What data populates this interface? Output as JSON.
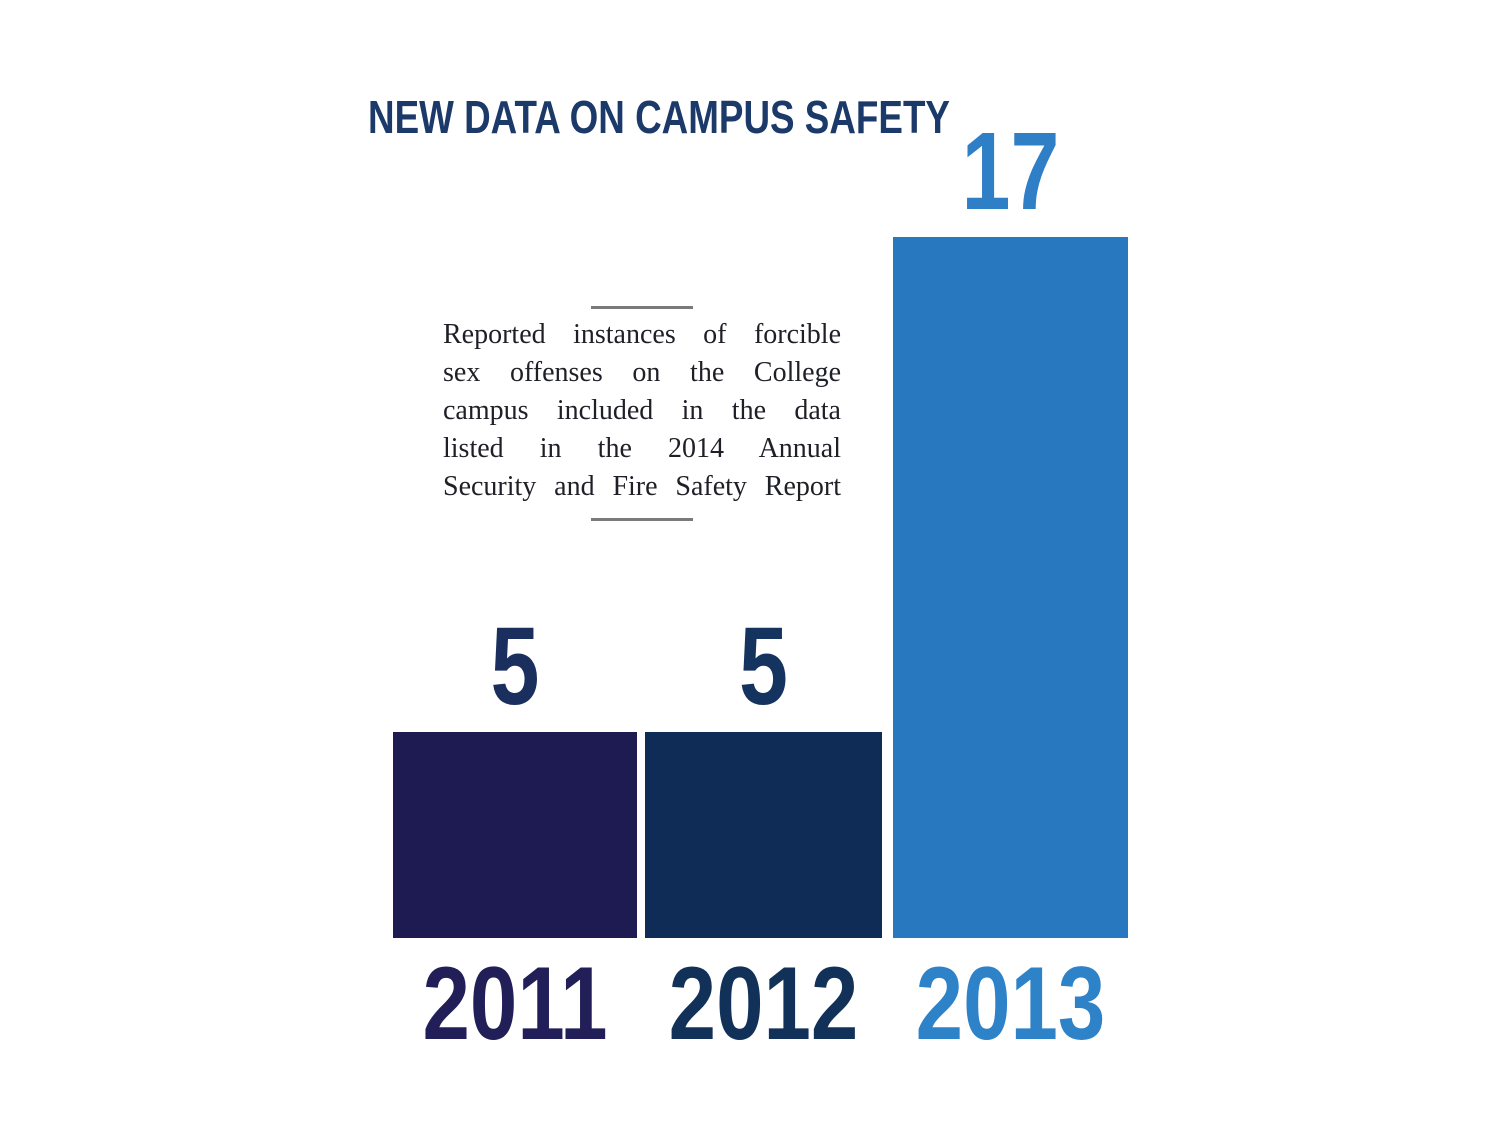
{
  "title": "NEW DATA ON CAMPUS SAFETY",
  "annotation": {
    "text": "Reported instances of forcible sex offenses on the College campus included in the data listed in the 2014 Annual Security and Fire Safety Report",
    "lines": [
      "Reported instances of forcible",
      "sex offenses on the College",
      "campus included in the data",
      "listed in the 2014 Annual",
      "Security and Fire Safety Report"
    ]
  },
  "chart_data": {
    "type": "bar",
    "title": "NEW DATA ON CAMPUS SAFETY",
    "categories": [
      "2011",
      "2012",
      "2013"
    ],
    "values": [
      5,
      5,
      17
    ],
    "xlabel": "",
    "ylabel": "",
    "ylim": [
      0,
      17
    ],
    "grid": false,
    "legend": false,
    "annotation": "Reported instances of forcible sex offenses on the College campus included in the data listed in the 2014 Annual Security and Fire Safety Report",
    "bar_colors": [
      "#1d1b52",
      "#0e2c55",
      "#2878c0"
    ],
    "value_label_colors": [
      "#1a2f5e",
      "#14335f",
      "#2e7fc6"
    ],
    "category_label_colors": [
      "#221e58",
      "#123158",
      "#2e82c8"
    ]
  },
  "colors": {
    "background": "#ffffff",
    "title": "#1c3a69",
    "annotation_text": "#1f1f28",
    "rule": "#7a7a7a"
  }
}
